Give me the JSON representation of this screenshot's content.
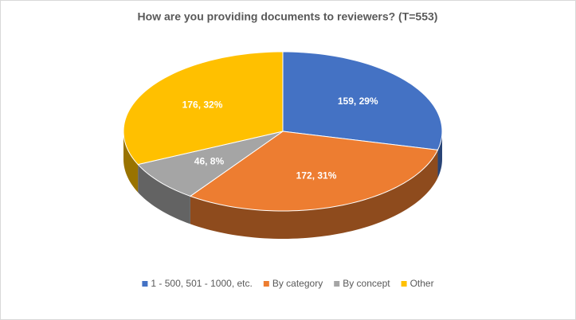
{
  "chart_data": {
    "type": "pie3d",
    "title": "How are you providing documents to reviewers? (T=553)",
    "categories": [
      "1 - 500, 501 - 1000, etc.",
      "By category",
      "By concept",
      "Other"
    ],
    "values": [
      159,
      172,
      46,
      176
    ],
    "value_labels": [
      "159, 29%",
      "172, 31%",
      "46, 8%",
      "176, 32%"
    ],
    "colors": [
      "#4472c4",
      "#ed7d31",
      "#a5a5a5",
      "#ffc000"
    ],
    "legend": "bottom"
  }
}
